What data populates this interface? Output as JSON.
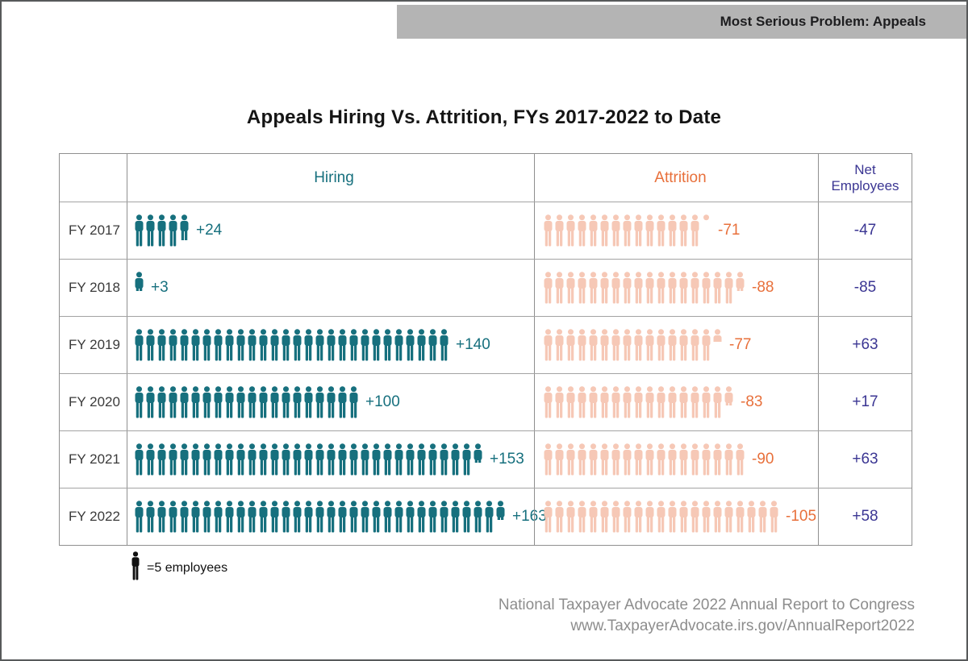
{
  "banner": {
    "label": "Most Serious Problem: Appeals"
  },
  "title": "Appeals Hiring Vs. Attrition, FYs 2017-2022 to Date",
  "chart_data": {
    "type": "pictograph-table",
    "unit_per_icon": 5,
    "headers": {
      "hiring": "Hiring",
      "attrition": "Attrition",
      "net": "Net Employees"
    },
    "rows": [
      {
        "label": "FY 2017",
        "hiring": 24,
        "hiring_label": "+24",
        "attrition": 71,
        "attrition_label": "-71",
        "net": -47,
        "net_label": "-47"
      },
      {
        "label": "FY 2018",
        "hiring": 3,
        "hiring_label": "+3",
        "attrition": 88,
        "attrition_label": "-88",
        "net": -85,
        "net_label": "-85"
      },
      {
        "label": "FY 2019",
        "hiring": 140,
        "hiring_label": "+140",
        "attrition": 77,
        "attrition_label": "-77",
        "net": 63,
        "net_label": "+63"
      },
      {
        "label": "FY 2020",
        "hiring": 100,
        "hiring_label": "+100",
        "attrition": 83,
        "attrition_label": "-83",
        "net": 17,
        "net_label": "+17"
      },
      {
        "label": "FY 2021",
        "hiring": 153,
        "hiring_label": "+153",
        "attrition": 90,
        "attrition_label": "-90",
        "net": 63,
        "net_label": "+63"
      },
      {
        "label": "FY 2022",
        "hiring": 163,
        "hiring_label": "+163",
        "attrition": 105,
        "attrition_label": "-105",
        "net": 58,
        "net_label": "+58"
      }
    ],
    "legend_label": "=5 employees"
  },
  "footer": {
    "line1": "National Taxpayer Advocate 2022 Annual Report to Congress",
    "line2": "www.TaxpayerAdvocate.irs.gov/AnnualReport2022"
  },
  "colors": {
    "hiring_icon": "#17707e",
    "hiring_text": "#17707e",
    "attrition_icon": "#f6c8b6",
    "attrition_text": "#e8703b",
    "net_text": "#3b3693",
    "legend_icon": "#111111",
    "banner_bg": "#b4b4b4"
  }
}
